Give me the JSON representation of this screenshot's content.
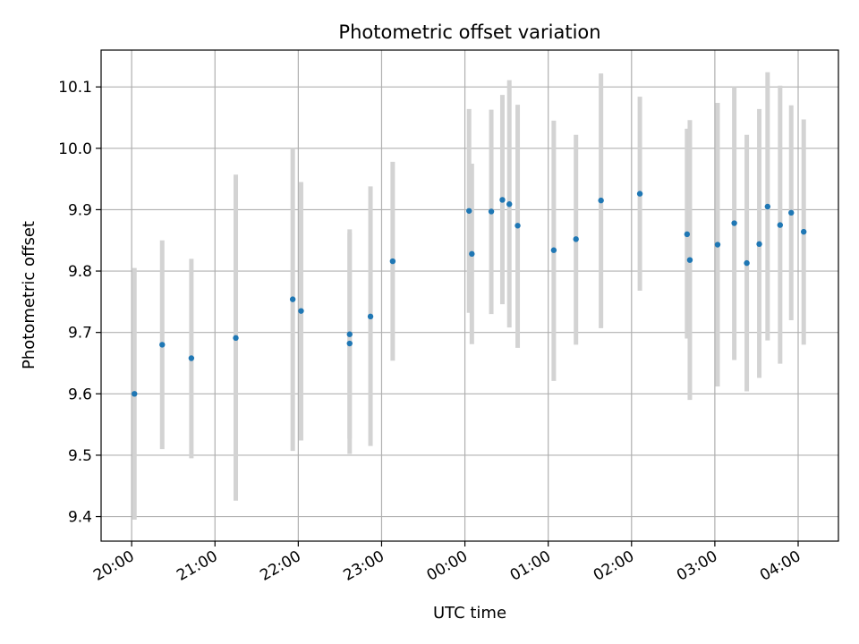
{
  "chart_data": {
    "type": "scatter",
    "title": "Photometric offset variation",
    "xlabel": "UTC time",
    "ylabel": "Photometric offset",
    "x_axis_kind": "time",
    "x_ticks": [
      "20:00",
      "21:00",
      "22:00",
      "23:00",
      "00:00",
      "01:00",
      "02:00",
      "03:00",
      "04:00"
    ],
    "y_ticks": [
      "9.4",
      "9.5",
      "9.6",
      "9.7",
      "9.8",
      "9.9",
      "10.0",
      "10.1"
    ],
    "xlim": [
      "19:38",
      "04:29"
    ],
    "ylim": [
      9.36,
      10.16
    ],
    "grid": true,
    "marker_color": "#1f77b4",
    "errorbar_color": "#d3d3d3",
    "points": [
      {
        "x": "20:02",
        "y": 9.6,
        "err_low": 9.395,
        "err_high": 9.805
      },
      {
        "x": "20:22",
        "y": 9.68,
        "err_low": 9.51,
        "err_high": 9.85
      },
      {
        "x": "20:43",
        "y": 9.658,
        "err_low": 9.495,
        "err_high": 9.82
      },
      {
        "x": "21:15",
        "y": 9.691,
        "err_low": 9.426,
        "err_high": 9.957
      },
      {
        "x": "21:56",
        "y": 9.754,
        "err_low": 9.507,
        "err_high": 10.0
      },
      {
        "x": "22:02",
        "y": 9.735,
        "err_low": 9.524,
        "err_high": 9.945
      },
      {
        "x": "22:37",
        "y": 9.697,
        "err_low": 9.527,
        "err_high": 9.868
      },
      {
        "x": "22:37",
        "y": 9.682,
        "err_low": 9.502,
        "err_high": 9.862
      },
      {
        "x": "22:52",
        "y": 9.726,
        "err_low": 9.515,
        "err_high": 9.938
      },
      {
        "x": "23:08",
        "y": 9.816,
        "err_low": 9.654,
        "err_high": 9.978
      },
      {
        "x": "00:03",
        "y": 9.898,
        "err_low": 9.732,
        "err_high": 10.064
      },
      {
        "x": "00:05",
        "y": 9.828,
        "err_low": 9.681,
        "err_high": 9.975
      },
      {
        "x": "00:19",
        "y": 9.897,
        "err_low": 9.73,
        "err_high": 10.063
      },
      {
        "x": "00:27",
        "y": 9.916,
        "err_low": 9.746,
        "err_high": 10.087
      },
      {
        "x": "00:32",
        "y": 9.909,
        "err_low": 9.708,
        "err_high": 10.111
      },
      {
        "x": "00:38",
        "y": 9.874,
        "err_low": 9.675,
        "err_high": 10.071
      },
      {
        "x": "01:04",
        "y": 9.834,
        "err_low": 9.621,
        "err_high": 10.045
      },
      {
        "x": "01:20",
        "y": 9.852,
        "err_low": 9.68,
        "err_high": 10.022
      },
      {
        "x": "01:38",
        "y": 9.915,
        "err_low": 9.707,
        "err_high": 10.122
      },
      {
        "x": "02:06",
        "y": 9.926,
        "err_low": 9.768,
        "err_high": 10.084
      },
      {
        "x": "02:40",
        "y": 9.86,
        "err_low": 9.69,
        "err_high": 10.032
      },
      {
        "x": "02:42",
        "y": 9.818,
        "err_low": 9.59,
        "err_high": 10.046
      },
      {
        "x": "03:02",
        "y": 9.843,
        "err_low": 9.612,
        "err_high": 10.074
      },
      {
        "x": "03:14",
        "y": 9.878,
        "err_low": 9.655,
        "err_high": 10.1
      },
      {
        "x": "03:23",
        "y": 9.813,
        "err_low": 9.604,
        "err_high": 10.022
      },
      {
        "x": "03:32",
        "y": 9.844,
        "err_low": 9.626,
        "err_high": 10.064
      },
      {
        "x": "03:38",
        "y": 9.905,
        "err_low": 9.687,
        "err_high": 10.124
      },
      {
        "x": "03:47",
        "y": 9.875,
        "err_low": 9.649,
        "err_high": 10.102
      },
      {
        "x": "03:55",
        "y": 9.895,
        "err_low": 9.72,
        "err_high": 10.07
      },
      {
        "x": "04:04",
        "y": 9.864,
        "err_low": 9.68,
        "err_high": 10.047
      }
    ]
  }
}
